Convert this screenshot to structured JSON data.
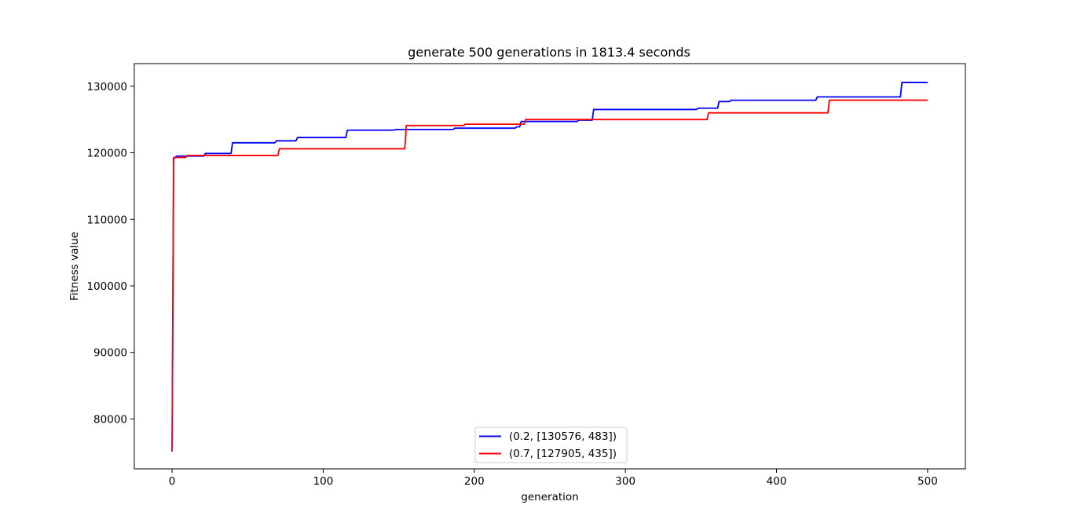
{
  "chart_data": {
    "type": "line",
    "title": "generate 500 generations in 1813.4 seconds",
    "xlabel": "generation",
    "ylabel": "Fitness value",
    "xlim": [
      -25,
      525
    ],
    "ylim": [
      72500,
      133400
    ],
    "x_ticks": [
      0,
      100,
      200,
      300,
      400,
      500
    ],
    "x_tick_labels": [
      "0",
      "100",
      "200",
      "300",
      "400",
      "500"
    ],
    "y_ticks": [
      80000,
      90000,
      100000,
      110000,
      120000,
      130000
    ],
    "y_tick_labels": [
      "80000",
      "90000",
      "100000",
      "110000",
      "120000",
      "130000"
    ],
    "grid": false,
    "legend_position": "lower center",
    "series": [
      {
        "name": "(0.2, [130576, 483])",
        "color": "#0000ff",
        "x": [
          0,
          1,
          2,
          3,
          21,
          22,
          39,
          40,
          68,
          69,
          82,
          83,
          115,
          116,
          147,
          148,
          186,
          187,
          227,
          228,
          230,
          231,
          268,
          269,
          278,
          279,
          347,
          348,
          361,
          362,
          369,
          370,
          426,
          427,
          482,
          483,
          500
        ],
        "y": [
          75100,
          119100,
          119300,
          119500,
          119500,
          119900,
          119900,
          121500,
          121500,
          121800,
          121800,
          122300,
          122300,
          123400,
          123400,
          123500,
          123500,
          123700,
          123700,
          123900,
          123900,
          124700,
          124700,
          124900,
          124900,
          126500,
          126500,
          126700,
          126700,
          127700,
          127700,
          127900,
          127900,
          128400,
          128400,
          130576,
          130576
        ]
      },
      {
        "name": "(0.7, [127905, 435])",
        "color": "#ff0000",
        "x": [
          0,
          1,
          2,
          9,
          10,
          70,
          71,
          154,
          155,
          193,
          194,
          233,
          234,
          354,
          355,
          434,
          435,
          500
        ],
        "y": [
          75100,
          119300,
          119300,
          119300,
          119600,
          119600,
          120600,
          120600,
          124100,
          124100,
          124300,
          124300,
          125000,
          125000,
          126000,
          126000,
          127905,
          127905
        ]
      }
    ]
  }
}
